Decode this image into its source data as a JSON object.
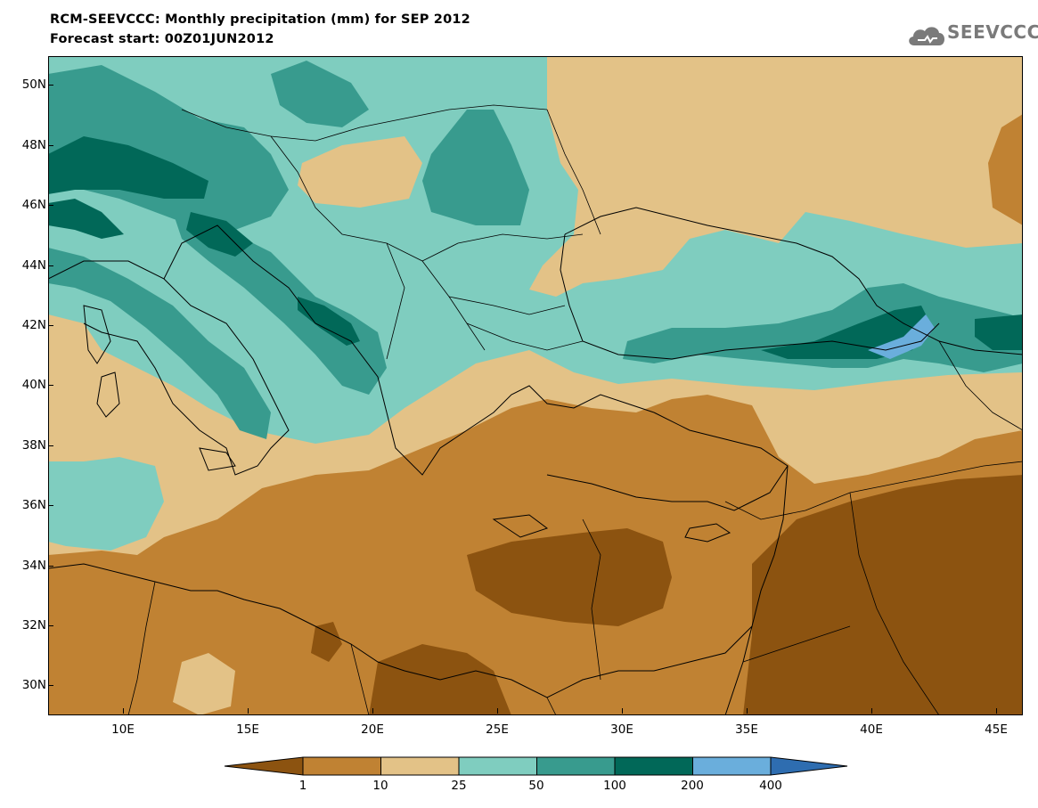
{
  "title": {
    "line1": "RCM-SEEVCCC: Monthly precipitation (mm) for SEP 2012",
    "line2": "Forecast start: 00Z01JUN2012"
  },
  "logo": {
    "text": "SEEVCCC",
    "icon": "cloud-icon"
  },
  "map": {
    "variable": "Monthly precipitation",
    "units": "mm",
    "month": "SEP 2012",
    "lon_range": [
      7,
      46
    ],
    "lat_range": [
      29,
      51
    ],
    "lat_labels": [
      "30N",
      "32N",
      "34N",
      "36N",
      "38N",
      "40N",
      "42N",
      "44N",
      "46N",
      "48N",
      "50N"
    ],
    "lon_labels": [
      "10E",
      "15E",
      "20E",
      "25E",
      "30E",
      "35E",
      "40E",
      "45E"
    ]
  },
  "colorbar": {
    "levels": [
      "1",
      "10",
      "25",
      "50",
      "100",
      "200",
      "400"
    ],
    "colors": [
      "#8c5310",
      "#c08233",
      "#e3c287",
      "#7fcdbf",
      "#389b8e",
      "#016858",
      "#6aaedc",
      "#2e6db0"
    ]
  }
}
